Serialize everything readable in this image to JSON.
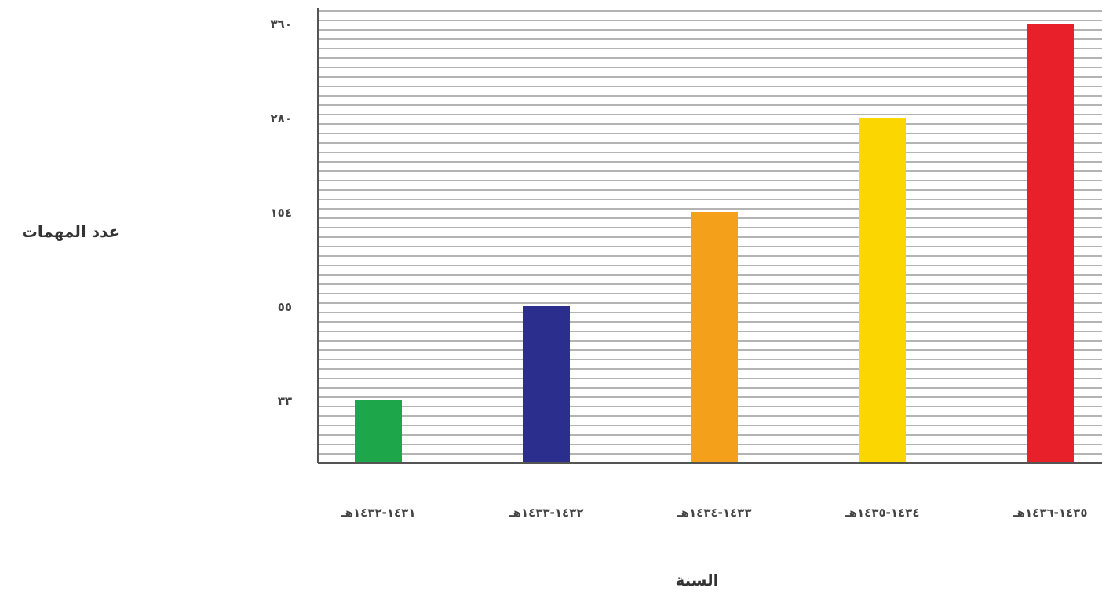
{
  "chart_data": {
    "type": "bar",
    "xlabel": "السنة",
    "ylabel": "عدد المهمات",
    "categories": [
      "١٤٣١-١٤٣٢هـ",
      "١٤٣٢-١٤٣٣هـ",
      "١٤٣٣-١٤٣٤هـ",
      "١٤٣٤-١٤٣٥هـ",
      "١٤٣٥-١٤٣٦هـ"
    ],
    "values": [
      33,
      55,
      154,
      280,
      360
    ],
    "colors": [
      "#1ea64a",
      "#2b2e8c",
      "#f4a01b",
      "#fbd600",
      "#e8202a"
    ],
    "y_ticks": [
      {
        "value": 33,
        "label": "٣٣"
      },
      {
        "value": 55,
        "label": "٥٥"
      },
      {
        "value": 154,
        "label": "١٥٤"
      },
      {
        "value": 280,
        "label": "٢٨٠"
      },
      {
        "value": 360,
        "label": "٣٦٠"
      }
    ],
    "grid": true,
    "y_axis_side": "left",
    "y_scale": "categorical-ticks (uneven spacing)"
  }
}
